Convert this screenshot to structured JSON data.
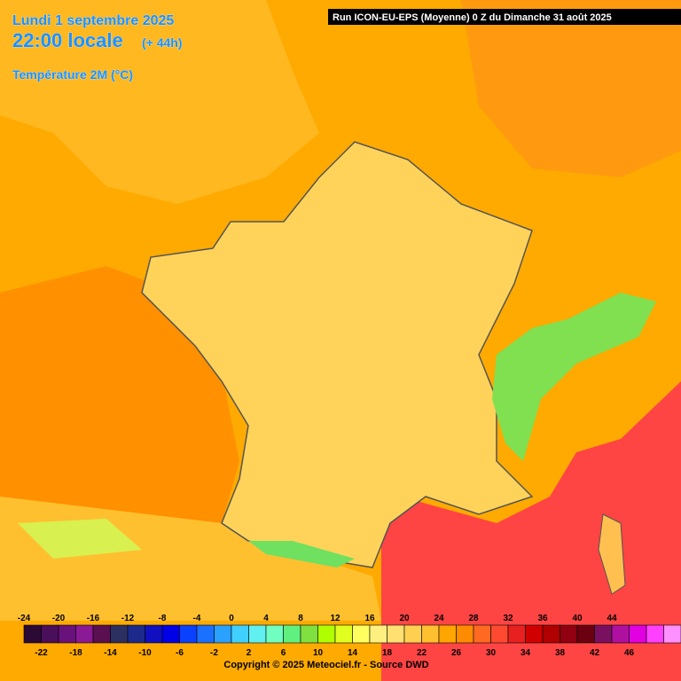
{
  "header": {
    "date": "Lundi 1 septembre 2025",
    "time": "22:00 locale",
    "lead": "(+ 44h)",
    "variable": "Température 2M (°C)",
    "run": "Run ICON-EU-EPS (Moyenne) 0 Z du Dimanche 31 août 2025"
  },
  "colorbar": {
    "top_labels": [
      -24,
      -20,
      -16,
      -12,
      -8,
      -4,
      0,
      4,
      8,
      12,
      16,
      20,
      24,
      28,
      32,
      36,
      40,
      44
    ],
    "bottom_labels": [
      -22,
      -18,
      -14,
      -10,
      -6,
      -2,
      2,
      6,
      10,
      14,
      18,
      22,
      26,
      30,
      34,
      38,
      42,
      46
    ],
    "colors": [
      "#2b0a35",
      "#4a0f5a",
      "#6a127c",
      "#8a1a95",
      "#5a1050",
      "#2c3060",
      "#1c2a8c",
      "#1010c0",
      "#0000e6",
      "#0a40ff",
      "#1a70ff",
      "#2aa0ff",
      "#40d0ff",
      "#60f0f0",
      "#70ffc0",
      "#60f080",
      "#80e040",
      "#b0ff00",
      "#e0ff20",
      "#ffff60",
      "#fff080",
      "#ffe070",
      "#ffd050",
      "#ffc030",
      "#ffa500",
      "#ff8c00",
      "#ff6a20",
      "#ff4a30",
      "#e82020",
      "#d00000",
      "#b00000",
      "#900010",
      "#6a0010",
      "#7a1060",
      "#b010a0",
      "#e000e0",
      "#ff40ff",
      "#ff90ff"
    ]
  },
  "footer": {
    "copyright": "Copyright © 2025 Meteociel.fr - Source DWD"
  }
}
